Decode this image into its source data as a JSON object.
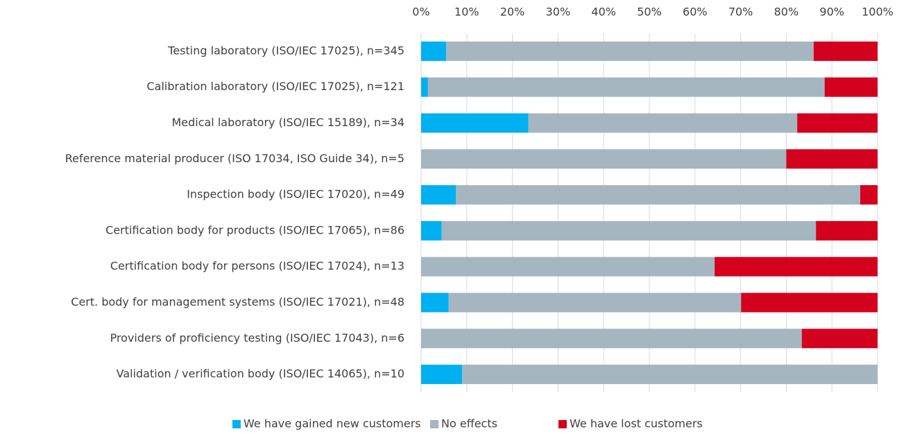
{
  "chart_data": {
    "type": "stacked_bar_horizontal",
    "categories": [
      "Testing laboratory (ISO/IEC 17025), n=345",
      "Calibration laboratory (ISO/IEC 17025), n=121",
      "Medical laboratory (ISO/IEC 15189), n=34",
      "Reference material producer (ISO 17034, ISO Guide 34), n=5",
      "Inspection body (ISO/IEC 17020), n=49",
      "Certification body for products (ISO/IEC 17065), n=86",
      "Certification body for persons (ISO/IEC 17024), n=13",
      "Cert. body for management systems (ISO/IEC 17021),  n=48",
      "Providers of proficiency testing (ISO/IEC 17043), n=6",
      "Validation / verification body (ISO/IEC 14065), n=10"
    ],
    "series": [
      {
        "name": "We have gained new customers",
        "color": "#00b0f0",
        "values": [
          5.5,
          1.5,
          23.5,
          0,
          7.6,
          4.5,
          0,
          6.0,
          0,
          9.0
        ]
      },
      {
        "name": "No effects",
        "color": "#a5b6c1",
        "values": [
          80.5,
          86.9,
          58.9,
          80,
          88.6,
          82.0,
          64.3,
          64.1,
          83.4,
          91.0
        ]
      },
      {
        "name": "We have lost customers",
        "color": "#d3001e",
        "values": [
          14.0,
          11.6,
          17.6,
          20,
          3.8,
          13.5,
          35.7,
          29.9,
          16.6,
          0
        ]
      }
    ],
    "xlim": [
      0,
      100
    ],
    "xticks": [
      {
        "value": 0,
        "label": "0%"
      },
      {
        "value": 10,
        "label": "10%"
      },
      {
        "value": 20,
        "label": "20%"
      },
      {
        "value": 30,
        "label": "30%"
      },
      {
        "value": 40,
        "label": "40%"
      },
      {
        "value": 50,
        "label": "50%"
      },
      {
        "value": 60,
        "label": "60%"
      },
      {
        "value": 70,
        "label": "70%"
      },
      {
        "value": 80,
        "label": "80%"
      },
      {
        "value": 90,
        "label": "90%"
      },
      {
        "value": 100,
        "label": "100%"
      }
    ],
    "grid": true,
    "legend": "bottom"
  }
}
